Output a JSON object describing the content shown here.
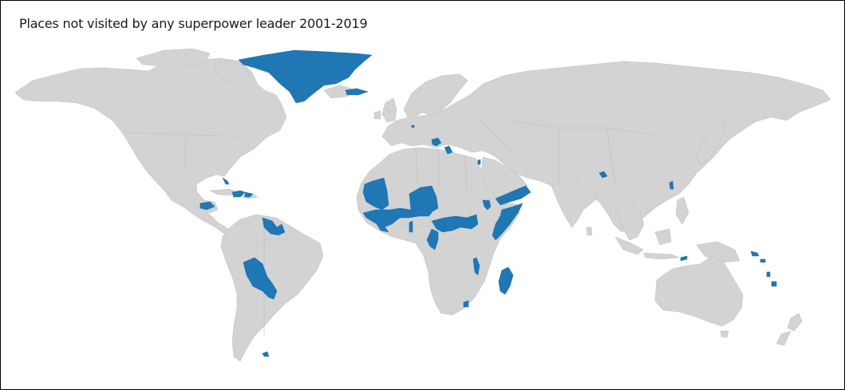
{
  "title": "Places not visited by any superpower leader 2001-2019",
  "colors": {
    "background": "#ffffff",
    "land": "#d3d3d3",
    "highlight": "#1f77b4",
    "frame": "#000000"
  },
  "highlighted_places": [
    "Greenland",
    "Faroe Islands",
    "Liechtenstein",
    "Montenegro",
    "Bosnia and Herzegovina",
    "Cuba",
    "Haiti",
    "Dominican Republic",
    "Honduras",
    "Guyana",
    "Suriname",
    "French Guiana",
    "Bolivia",
    "Paraguay",
    "Falkland Islands",
    "Mauritania",
    "Mali",
    "Niger",
    "Chad",
    "Guinea-Bissau",
    "Guinea",
    "Sierra Leone",
    "Ivory Coast",
    "Burkina Faso",
    "Togo",
    "Cameroon",
    "Equatorial Guinea",
    "Gabon",
    "Central African Republic",
    "South Sudan",
    "Eritrea",
    "Djibouti",
    "Yemen",
    "Somalia",
    "Malawi",
    "Madagascar",
    "Eswatini",
    "Nepal",
    "Taiwan",
    "Timor-Leste",
    "Solomon Islands",
    "Vanuatu",
    "Fiji",
    "Palestine"
  ]
}
